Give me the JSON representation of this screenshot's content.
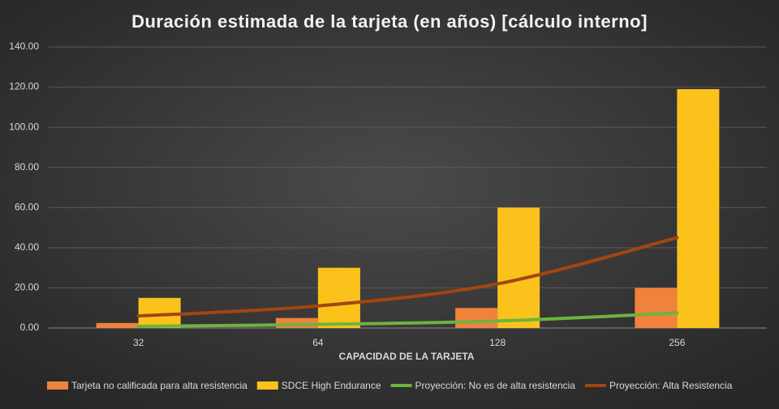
{
  "chart_data": {
    "type": "bar",
    "title": "Duración estimada de la tarjeta (en años) [cálculo interno]",
    "x_label": "CAPACIDAD DE LA TARJETA",
    "categories": [
      "32",
      "64",
      "128",
      "256"
    ],
    "series": [
      {
        "name": "Tarjeta no calificada para alta resistencia",
        "type": "bar",
        "color": "#f0823c",
        "values": [
          2.5,
          5,
          10,
          20
        ]
      },
      {
        "name": "SDCE High Endurance",
        "type": "bar",
        "color": "#fcc21c",
        "values": [
          15,
          30,
          60,
          119
        ]
      },
      {
        "name": "Proyección: No es de alta resistencia",
        "type": "line",
        "color": "#6db33f",
        "values": [
          0.8,
          1.8,
          3.5,
          7.5
        ]
      },
      {
        "name": "Proyección: Alta Resistencia",
        "type": "line",
        "color": "#a2460f",
        "values": [
          6,
          11,
          22,
          45
        ]
      }
    ],
    "ylim": [
      0,
      140
    ],
    "yticks": [
      {
        "value": 0,
        "label": "0.00"
      },
      {
        "value": 20,
        "label": "20.00"
      },
      {
        "value": 40,
        "label": "40.00"
      },
      {
        "value": 60,
        "label": "60.00"
      },
      {
        "value": 80,
        "label": "80.00"
      },
      {
        "value": 100,
        "label": "100.00"
      },
      {
        "value": 120,
        "label": "120.00"
      },
      {
        "value": 140,
        "label": "140.00"
      }
    ],
    "grid": true
  }
}
